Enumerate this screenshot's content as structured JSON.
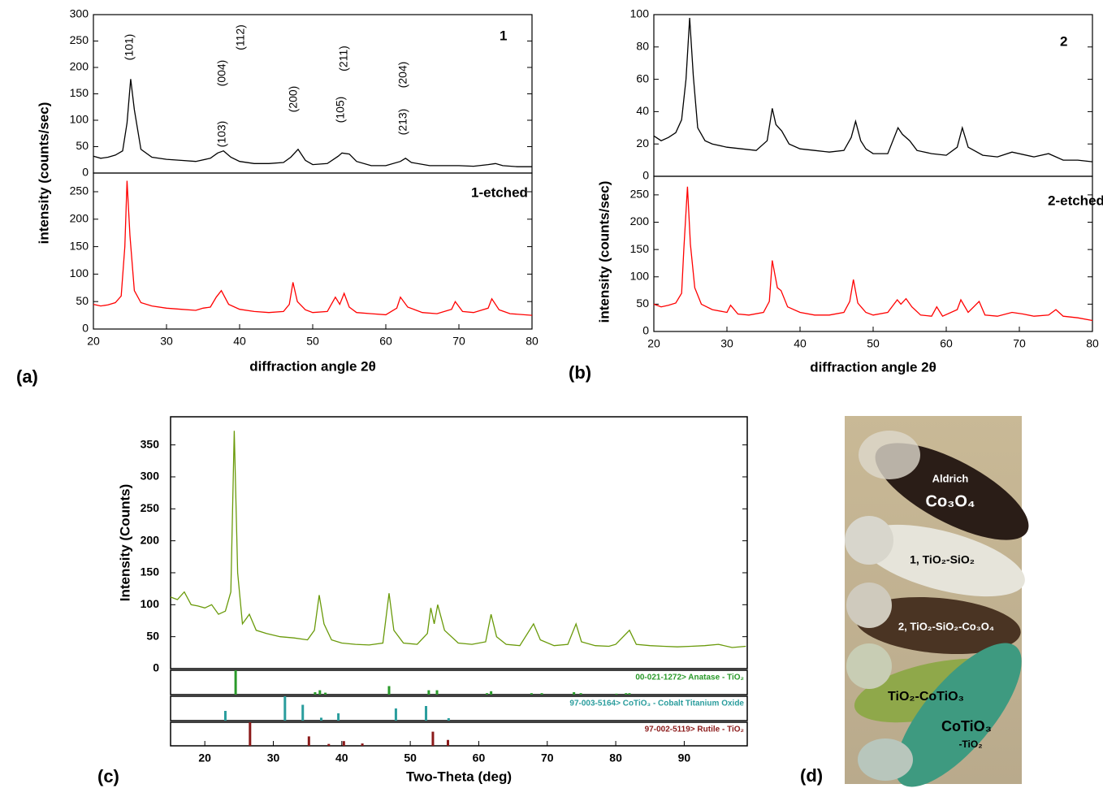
{
  "chart_data": [
    {
      "type": "line",
      "ylabel": "intensity (counts/sec)",
      "xlim": [
        20,
        80
      ],
      "ylim": [
        0,
        300
      ],
      "yticks": [
        0,
        50,
        100,
        150,
        200,
        250,
        300
      ],
      "annotations": [
        "(101)",
        "(103)",
        "(004)",
        "(112)",
        "(200)",
        "(105)",
        "(211)",
        "(213)",
        "(204)"
      ],
      "x": [
        20,
        21,
        22,
        23,
        24,
        24.6,
        25.1,
        25.6,
        26.5,
        28,
        30,
        32,
        34,
        36,
        37,
        37.8,
        38.8,
        40,
        42,
        44,
        46,
        47,
        48,
        49,
        50,
        52,
        53.5,
        54,
        55,
        56,
        58,
        60,
        62,
        62.7,
        63.5,
        66,
        68,
        70,
        72,
        74,
        75,
        76,
        78,
        80
      ],
      "series": [
        {
          "name": "1",
          "color": "#000000",
          "values": [
            32,
            28,
            30,
            34,
            42,
            95,
            178,
            120,
            45,
            30,
            26,
            24,
            22,
            28,
            38,
            42,
            30,
            22,
            18,
            18,
            20,
            30,
            45,
            24,
            16,
            18,
            32,
            38,
            36,
            22,
            14,
            14,
            22,
            28,
            20,
            14,
            14,
            14,
            13,
            16,
            18,
            14,
            12,
            12
          ]
        }
      ]
    },
    {
      "type": "line",
      "xlabel": "diffraction angle 2θ",
      "panel_label": "(a)",
      "xlim": [
        20,
        80
      ],
      "xticks": [
        20,
        30,
        40,
        50,
        60,
        70,
        80
      ],
      "ylim": [
        0,
        284
      ],
      "yticks": [
        0,
        50,
        100,
        150,
        200,
        250
      ],
      "x": [
        20,
        21,
        22,
        23,
        23.8,
        24.3,
        24.6,
        25,
        25.6,
        26.5,
        28,
        30,
        32,
        34,
        35,
        36,
        36.8,
        37.5,
        38.5,
        40,
        42,
        44,
        46,
        46.8,
        47.3,
        47.9,
        49,
        50,
        52,
        53.1,
        53.7,
        54.3,
        55,
        56,
        58,
        60,
        61.5,
        62,
        63,
        65,
        67,
        69,
        69.5,
        70.5,
        72,
        74,
        74.5,
        75.5,
        77,
        80
      ],
      "series": [
        {
          "name": "1-etched",
          "color": "#ff0000",
          "values": [
            45,
            42,
            44,
            48,
            60,
            150,
            270,
            170,
            70,
            48,
            42,
            38,
            36,
            34,
            38,
            40,
            58,
            70,
            45,
            36,
            32,
            30,
            32,
            45,
            85,
            50,
            35,
            30,
            32,
            58,
            45,
            65,
            40,
            30,
            28,
            26,
            38,
            58,
            40,
            30,
            28,
            36,
            50,
            32,
            30,
            38,
            55,
            35,
            28,
            25
          ]
        }
      ]
    },
    {
      "type": "line",
      "ylabel": "intensity (counts/sec)",
      "xlim": [
        20,
        80
      ],
      "ylim": [
        0,
        100
      ],
      "yticks": [
        0,
        20,
        40,
        60,
        80,
        100
      ],
      "x": [
        20,
        21,
        22,
        23,
        23.8,
        24.4,
        24.9,
        25.4,
        26,
        27,
        28,
        30,
        32,
        34,
        35.5,
        36.2,
        36.7,
        37.5,
        38.5,
        40,
        42,
        44,
        46,
        47,
        47.6,
        48.3,
        49,
        50,
        52,
        53.4,
        54,
        55,
        56,
        58,
        60,
        61.5,
        62.2,
        63,
        65,
        67,
        69,
        72,
        74,
        76,
        78,
        80
      ],
      "series": [
        {
          "name": "2",
          "color": "#000000",
          "values": [
            25,
            22,
            24,
            27,
            35,
            60,
            98,
            62,
            30,
            22,
            20,
            18,
            17,
            16,
            22,
            42,
            32,
            28,
            20,
            17,
            16,
            15,
            16,
            24,
            34,
            22,
            17,
            14,
            14,
            30,
            26,
            22,
            16,
            14,
            13,
            18,
            30,
            18,
            13,
            12,
            15,
            12,
            14,
            10,
            10,
            9
          ]
        }
      ]
    },
    {
      "type": "line",
      "xlabel": "diffraction angle 2θ",
      "panel_label": "(b)",
      "xlim": [
        20,
        80
      ],
      "xticks": [
        20,
        30,
        40,
        50,
        60,
        70,
        80
      ],
      "ylim": [
        0,
        284
      ],
      "yticks": [
        0,
        50,
        100,
        150,
        200,
        250
      ],
      "x": [
        20,
        21,
        22,
        23,
        23.8,
        24.1,
        24.6,
        25,
        25.6,
        26.5,
        28,
        30,
        30.5,
        31.5,
        33,
        35,
        35.8,
        36.2,
        36.9,
        37.4,
        38.3,
        40,
        42,
        44,
        46,
        46.8,
        47.3,
        47.9,
        49,
        50,
        52,
        53.3,
        53.8,
        54.5,
        55.3,
        56.5,
        58,
        58.7,
        59.5,
        61.5,
        62,
        63,
        64.5,
        65.3,
        67,
        69,
        70.5,
        72,
        74,
        75,
        76,
        78,
        80
      ],
      "series": [
        {
          "name": "2-etched",
          "color": "#ff0000",
          "values": [
            50,
            45,
            48,
            52,
            70,
            150,
            265,
            160,
            80,
            50,
            40,
            35,
            48,
            32,
            30,
            35,
            55,
            130,
            80,
            75,
            45,
            35,
            30,
            30,
            35,
            55,
            95,
            52,
            35,
            30,
            35,
            58,
            50,
            60,
            45,
            30,
            28,
            45,
            28,
            40,
            58,
            35,
            55,
            30,
            28,
            35,
            32,
            28,
            30,
            40,
            28,
            25,
            20
          ]
        }
      ]
    },
    {
      "type": "line",
      "ylabel": "Intensity (Counts)",
      "xlim": [
        15,
        99.2
      ],
      "ylim": [
        0,
        394
      ],
      "yticks": [
        0,
        50,
        100,
        150,
        200,
        250,
        300,
        350
      ],
      "x": [
        15,
        16,
        17,
        18,
        19,
        20,
        21,
        22,
        23,
        23.8,
        24.3,
        24.8,
        25.5,
        26.5,
        27.5,
        29,
        31,
        33,
        35,
        36,
        36.7,
        37.4,
        38.5,
        40,
        42,
        44,
        46,
        46.9,
        47.6,
        49,
        51,
        52.5,
        53,
        53.5,
        54,
        55,
        57,
        59,
        61,
        61.8,
        62.6,
        64,
        66,
        68,
        69,
        71,
        73,
        74.2,
        75,
        77,
        79,
        80,
        82,
        83,
        85,
        87,
        89,
        91,
        93,
        95,
        97,
        99
      ],
      "series": [
        {
          "color": "#6a9a0a",
          "values": [
            112,
            108,
            120,
            100,
            98,
            95,
            100,
            85,
            90,
            120,
            372,
            150,
            70,
            85,
            60,
            55,
            50,
            48,
            45,
            60,
            115,
            70,
            45,
            40,
            38,
            37,
            40,
            118,
            60,
            40,
            38,
            55,
            95,
            70,
            100,
            60,
            40,
            38,
            42,
            85,
            50,
            38,
            36,
            70,
            45,
            36,
            38,
            70,
            42,
            36,
            35,
            38,
            60,
            38,
            36,
            35,
            34,
            35,
            36,
            38,
            33,
            35
          ]
        }
      ]
    },
    {
      "type": "stick",
      "label": "00-021-1272> Anatase - TiO₂",
      "color": "#2a9a2a",
      "xlim": [
        15,
        99.2
      ],
      "ylim": [
        0,
        100
      ],
      "x": [
        24.5,
        36.1,
        36.8,
        37.6,
        46.9,
        52.7,
        53.9,
        61.2,
        61.8,
        67.7,
        69.2,
        73.9,
        74.9,
        80.1,
        81.5,
        82.0
      ],
      "values": [
        100,
        10,
        18,
        8,
        35,
        18,
        18,
        6,
        14,
        6,
        6,
        10,
        6,
        4,
        6,
        6
      ]
    },
    {
      "type": "stick",
      "label": "97-003-5164> CoTiO₃ - Cobalt Titanium Oxide",
      "color": "#2a9d9d",
      "xlim": [
        15,
        99.2
      ],
      "ylim": [
        0,
        100
      ],
      "x": [
        23.0,
        31.7,
        34.3,
        37.0,
        39.5,
        47.9,
        52.3,
        55.6
      ],
      "values": [
        40,
        100,
        65,
        12,
        30,
        50,
        60,
        10
      ]
    },
    {
      "type": "stick",
      "label": "97-002-5119> Rutile - TiO₂",
      "color": "#8b1a1a",
      "xlabel": "Two-Theta (deg)",
      "panel_label": "(c)",
      "xlim": [
        15,
        99.2
      ],
      "ylim": [
        0,
        100
      ],
      "xticks": [
        20,
        30,
        40,
        50,
        60,
        70,
        80,
        90
      ],
      "x": [
        26.6,
        35.2,
        38.1,
        40.3,
        43.0,
        53.3,
        55.5
      ],
      "values": [
        100,
        40,
        8,
        20,
        10,
        60,
        25
      ]
    }
  ],
  "photo": {
    "panel_label": "(d)",
    "labels": [
      "Aldrich",
      "Co₃O₄",
      "1, TiO₂-SiO₂",
      "2, TiO₂-SiO₂-Co₃O₄",
      "TiO₂-CoTiO₃",
      "CoTiO₃",
      "-TiO₂"
    ]
  }
}
